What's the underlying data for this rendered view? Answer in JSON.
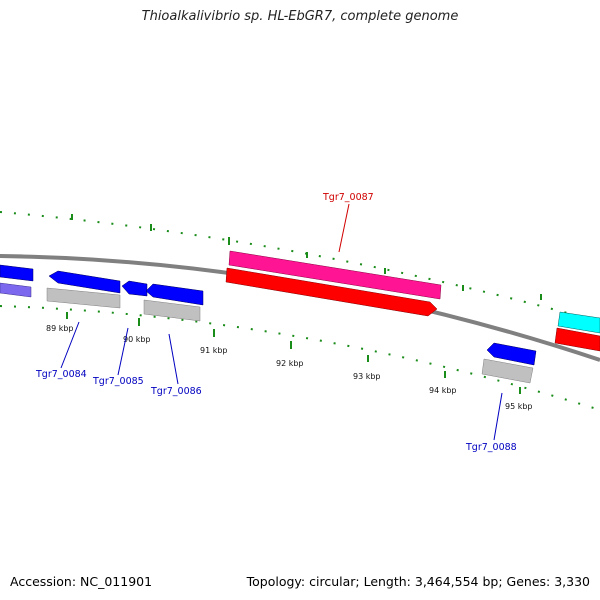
{
  "title": "Thioalkalivibrio sp. HL-EbGR7, complete genome",
  "footer": {
    "accession": "Accession: NC_011901",
    "topology": "Topology: circular; Length: 3,464,554 bp; Genes: 3,330"
  },
  "colors": {
    "backbone": "#808080",
    "tick": "#1a8c1a",
    "gene_label_blue": "#0000c0",
    "gene_label_red": "#d00000",
    "cds_blue": "#0000ff",
    "cds_magenta": "#ff1493",
    "cds_red": "#ff0000",
    "cds_cyan": "#00ffff",
    "gene_grey": "#c0c0c0",
    "violet": "#7b68ee"
  },
  "ticks": [
    {
      "label": "89 kbp"
    },
    {
      "label": "90 kbp"
    },
    {
      "label": "91 kbp"
    },
    {
      "label": "92 kbp"
    },
    {
      "label": "93 kbp"
    },
    {
      "label": "94 kbp"
    },
    {
      "label": "95 kbp"
    }
  ],
  "genes": [
    {
      "label": "Tgr7_0084",
      "color": "blue"
    },
    {
      "label": "Tgr7_0085",
      "color": "blue"
    },
    {
      "label": "Tgr7_0086",
      "color": "blue"
    },
    {
      "label": "Tgr7_0087",
      "color": "red"
    },
    {
      "label": "Tgr7_0088",
      "color": "blue"
    }
  ]
}
